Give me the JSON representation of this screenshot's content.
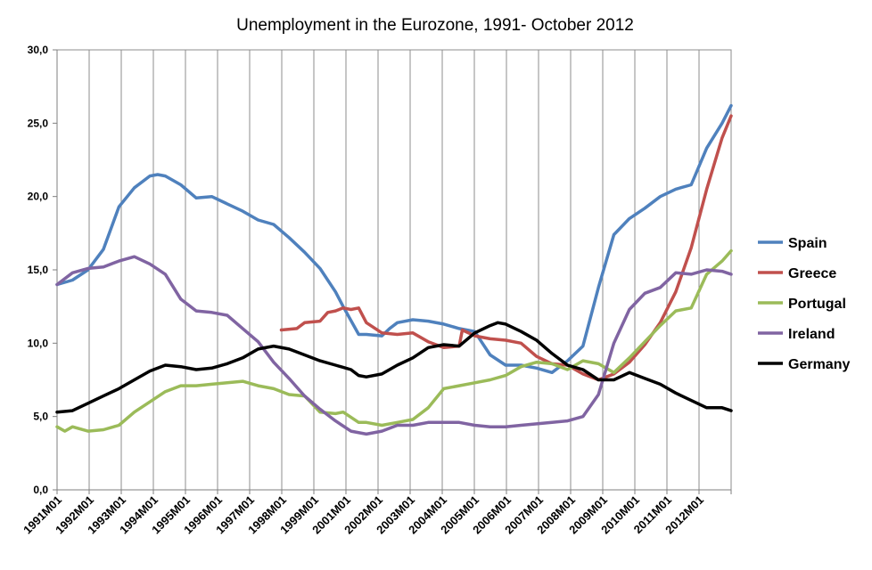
{
  "chart_data": {
    "type": "line",
    "title": "Unemployment in the Eurozone, 1991- October 2012",
    "xlabel": "",
    "ylabel": "",
    "ylim": [
      0,
      30
    ],
    "y_ticks": [
      0,
      5,
      10,
      15,
      20,
      25,
      30
    ],
    "y_tick_labels": [
      "0,0",
      "5,0",
      "10,0",
      "15,0",
      "20,0",
      "25,0",
      "30,0"
    ],
    "x_range": [
      "1991M01",
      "2012M10"
    ],
    "x_tick_labels": [
      "1991M01",
      "1992M01",
      "1993M01",
      "1994M01",
      "1995M01",
      "1996M01",
      "1997M01",
      "1998M01",
      "1999M01",
      "2001M01",
      "2002M01",
      "2003M01",
      "2004M01",
      "2005M01",
      "2006M01",
      "2007M01",
      "2008M01",
      "2009M01",
      "2010M01",
      "2011M01",
      "2012M01"
    ],
    "grid": "vertical",
    "legend": "right",
    "series": [
      {
        "name": "Spain",
        "color": "#4F81BD",
        "x": [
          1991.0,
          1991.5,
          1992.0,
          1992.5,
          1993.0,
          1993.5,
          1994.0,
          1994.25,
          1994.5,
          1995.0,
          1995.5,
          1996.0,
          1996.5,
          1997.0,
          1997.5,
          1998.0,
          1998.5,
          1999.0,
          1999.5,
          2000.0,
          2000.25,
          2000.75,
          2001.0,
          2001.5,
          2001.75,
          2002.0,
          2002.5,
          2003.0,
          2003.5,
          2004.0,
          2004.5,
          2005.0,
          2005.5,
          2006.0,
          2006.5,
          2007.0,
          2007.5,
          2008.0,
          2008.5,
          2009.0,
          2009.5,
          2010.0,
          2010.5,
          2011.0,
          2011.5,
          2012.0,
          2012.5,
          2012.79
        ],
        "y": [
          14.0,
          14.3,
          15.0,
          16.4,
          19.3,
          20.6,
          21.4,
          21.5,
          21.4,
          20.8,
          19.9,
          20.0,
          19.5,
          19.0,
          18.4,
          18.1,
          17.2,
          16.2,
          15.1,
          13.5,
          12.5,
          10.6,
          10.6,
          10.5,
          11.0,
          11.4,
          11.6,
          11.5,
          11.3,
          11.0,
          10.8,
          9.2,
          8.5,
          8.5,
          8.3,
          8.0,
          8.8,
          9.8,
          13.8,
          17.4,
          18.5,
          19.2,
          20.0,
          20.5,
          20.8,
          23.3,
          25.0,
          26.2
        ]
      },
      {
        "name": "Greece",
        "color": "#C0504D",
        "x": [
          1998.25,
          1998.75,
          1999.0,
          1999.5,
          1999.75,
          2000.0,
          2000.25,
          2000.5,
          2000.75,
          2001.0,
          2001.5,
          2002.0,
          2002.5,
          2003.0,
          2003.5,
          2004.0,
          2004.1,
          2004.5,
          2005.0,
          2005.5,
          2006.0,
          2006.5,
          2007.0,
          2007.5,
          2008.0,
          2008.5,
          2009.0,
          2009.5,
          2010.0,
          2010.5,
          2011.0,
          2011.5,
          2012.0,
          2012.5,
          2012.79
        ],
        "y": [
          10.9,
          11.0,
          11.4,
          11.5,
          12.1,
          12.2,
          12.4,
          12.3,
          12.4,
          11.4,
          10.7,
          10.6,
          10.7,
          10.1,
          9.7,
          9.8,
          10.9,
          10.5,
          10.3,
          10.2,
          10.0,
          9.1,
          8.6,
          8.5,
          7.9,
          7.5,
          7.9,
          8.7,
          9.9,
          11.4,
          13.5,
          16.5,
          20.5,
          24.0,
          25.5
        ]
      },
      {
        "name": "Portugal",
        "color": "#9BBB59",
        "x": [
          1991.0,
          1991.25,
          1991.5,
          1992.0,
          1992.5,
          1993.0,
          1993.5,
          1994.0,
          1994.5,
          1995.0,
          1995.5,
          1996.0,
          1996.5,
          1997.0,
          1997.5,
          1998.0,
          1998.5,
          1999.0,
          1999.5,
          2000.0,
          2000.25,
          2000.75,
          2001.0,
          2001.5,
          2002.0,
          2002.5,
          2003.0,
          2003.5,
          2004.0,
          2004.5,
          2005.0,
          2005.5,
          2006.0,
          2006.5,
          2007.0,
          2007.5,
          2008.0,
          2008.5,
          2009.0,
          2009.5,
          2010.0,
          2010.5,
          2011.0,
          2011.5,
          2012.0,
          2012.5,
          2012.79
        ],
        "y": [
          4.3,
          4.0,
          4.3,
          4.0,
          4.1,
          4.4,
          5.3,
          6.0,
          6.7,
          7.1,
          7.1,
          7.2,
          7.3,
          7.4,
          7.1,
          6.9,
          6.5,
          6.4,
          5.3,
          5.2,
          5.3,
          4.6,
          4.6,
          4.4,
          4.6,
          4.8,
          5.6,
          6.9,
          7.1,
          7.3,
          7.5,
          7.8,
          8.4,
          8.7,
          8.6,
          8.2,
          8.8,
          8.6,
          8.0,
          9.0,
          10.1,
          11.2,
          12.2,
          12.4,
          14.7,
          15.6,
          16.3
        ]
      },
      {
        "name": "Ireland",
        "color": "#8064A2",
        "x": [
          1991.0,
          1991.5,
          1992.0,
          1992.5,
          1993.0,
          1993.5,
          1994.0,
          1994.5,
          1995.0,
          1995.5,
          1996.0,
          1996.5,
          1997.0,
          1997.5,
          1998.0,
          1998.5,
          1999.0,
          1999.5,
          2000.0,
          2000.5,
          2001.0,
          2001.5,
          2002.0,
          2002.5,
          2003.0,
          2003.5,
          2004.0,
          2004.5,
          2005.0,
          2005.5,
          2006.0,
          2006.5,
          2007.0,
          2007.5,
          2008.0,
          2008.5,
          2009.0,
          2009.5,
          2010.0,
          2010.5,
          2011.0,
          2011.5,
          2012.0,
          2012.5,
          2012.79
        ],
        "y": [
          14.0,
          14.8,
          15.1,
          15.2,
          15.6,
          15.9,
          15.4,
          14.7,
          13.0,
          12.2,
          12.1,
          11.9,
          11.0,
          10.1,
          8.7,
          7.6,
          6.4,
          5.5,
          4.7,
          4.0,
          3.8,
          4.0,
          4.4,
          4.4,
          4.6,
          4.6,
          4.6,
          4.4,
          4.3,
          4.3,
          4.4,
          4.5,
          4.6,
          4.7,
          5.0,
          6.5,
          10.0,
          12.3,
          13.4,
          13.8,
          14.8,
          14.7,
          15.0,
          14.9,
          14.7
        ]
      },
      {
        "name": "Germany",
        "color": "#000000",
        "x": [
          1991.0,
          1991.5,
          1992.0,
          1992.5,
          1993.0,
          1993.5,
          1994.0,
          1994.5,
          1995.0,
          1995.5,
          1996.0,
          1996.5,
          1997.0,
          1997.5,
          1998.0,
          1998.5,
          1999.0,
          1999.5,
          2000.0,
          2000.5,
          2000.75,
          2001.0,
          2001.5,
          2002.0,
          2002.5,
          2003.0,
          2003.5,
          2004.0,
          2004.5,
          2005.0,
          2005.25,
          2005.5,
          2006.0,
          2006.5,
          2007.0,
          2007.5,
          2008.0,
          2008.5,
          2009.0,
          2009.5,
          2010.0,
          2010.5,
          2011.0,
          2011.5,
          2012.0,
          2012.5,
          2012.79
        ],
        "y": [
          5.3,
          5.4,
          5.9,
          6.4,
          6.9,
          7.5,
          8.1,
          8.5,
          8.4,
          8.2,
          8.3,
          8.6,
          9.0,
          9.6,
          9.8,
          9.6,
          9.2,
          8.8,
          8.5,
          8.2,
          7.8,
          7.7,
          7.9,
          8.5,
          9.0,
          9.7,
          9.9,
          9.8,
          10.7,
          11.2,
          11.4,
          11.3,
          10.8,
          10.2,
          9.3,
          8.5,
          8.2,
          7.5,
          7.5,
          8.0,
          7.6,
          7.2,
          6.6,
          6.1,
          5.6,
          5.6,
          5.4
        ]
      }
    ]
  }
}
